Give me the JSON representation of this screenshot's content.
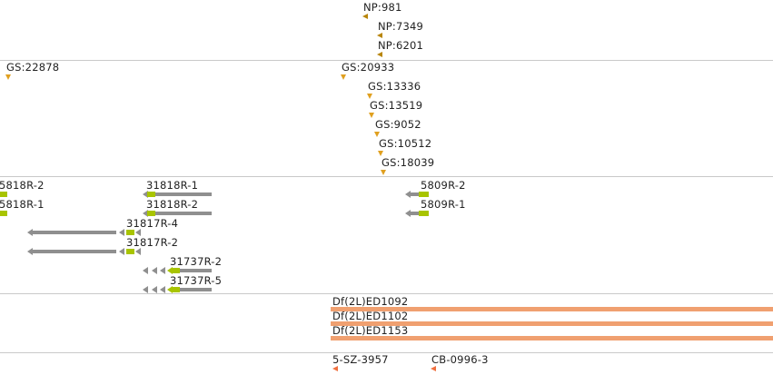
{
  "np_track": {
    "items": [
      "NP:981",
      "NP:7349",
      "NP:6201"
    ]
  },
  "gs_track": {
    "items": [
      "GS:22878",
      "GS:20933",
      "GS:13336",
      "GS:13519",
      "GS:9052",
      "GS:10512",
      "GS:18039"
    ]
  },
  "transcripts": {
    "items": [
      "5818R-2",
      "5818R-1",
      "31818R-1",
      "31818R-2",
      "31817R-4",
      "31817R-2",
      "31737R-2",
      "31737R-5",
      "5809R-2",
      "5809R-1"
    ]
  },
  "deficiencies": {
    "items": [
      "Df(2L)ED1092",
      "Df(2L)ED1102",
      "Df(2L)ED1153"
    ]
  },
  "clones": {
    "items": [
      "5-SZ-3957",
      "CB-0996-3"
    ]
  },
  "colors": {
    "np_marker": "#b8860b",
    "gs_marker": "#e0a020",
    "exon_gray": "#8f8f8f",
    "utr_lime": "#a8c400",
    "deficiency_bar": "#f0a070",
    "clone_marker": "#f07040",
    "separator": "#c9c9c9"
  }
}
